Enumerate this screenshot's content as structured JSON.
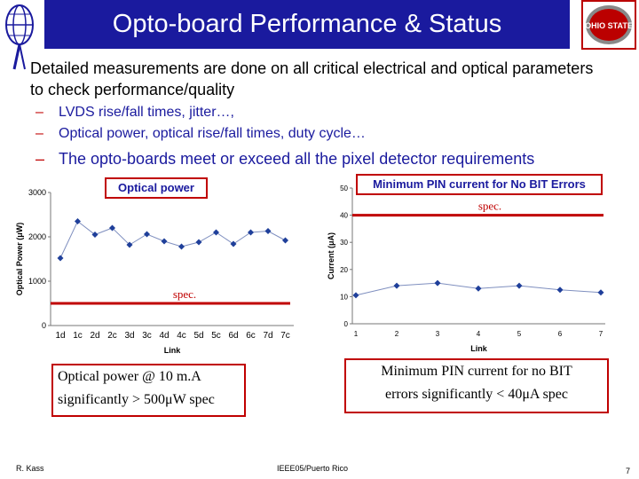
{
  "header": {
    "title": "Opto-board Performance & Status"
  },
  "colors": {
    "title_bg": "#1a1a9e",
    "spec_line": "#c00000",
    "series": "#1f3f9a",
    "osu_red": "#bb0000"
  },
  "logos": {
    "osu_text": "OHIO STATE"
  },
  "content": {
    "main_bullet": "Detailed measurements are done on all critical electrical and optical parameters to check performance/quality",
    "sub_bullets": [
      "LVDS rise/fall times, jitter…,",
      "Optical power, optical rise/fall times, duty cycle…",
      "The opto-boards meet or exceed all the pixel detector requirements"
    ],
    "dash": "–"
  },
  "chart_data": [
    {
      "type": "scatter",
      "title": "Optical power",
      "xlabel": "Link",
      "ylabel": "Optical Power (μW)",
      "categories": [
        "1d",
        "1c",
        "2d",
        "2c",
        "3d",
        "3c",
        "4d",
        "4c",
        "5d",
        "5c",
        "6d",
        "6c",
        "7d",
        "7c"
      ],
      "values": [
        1520,
        2350,
        2050,
        2200,
        1820,
        2060,
        1900,
        1780,
        1880,
        2100,
        1840,
        2100,
        2130,
        1920
      ],
      "ylim": [
        0,
        3000
      ],
      "yticks": [
        0,
        1000,
        2000,
        3000
      ],
      "spec_value": 500,
      "spec_label": "spec."
    },
    {
      "type": "scatter",
      "title": "Minimum PIN current for No BIT Errors",
      "xlabel": "Link",
      "ylabel": "Current (μA)",
      "categories": [
        "1",
        "2",
        "3",
        "4",
        "5",
        "6",
        "7"
      ],
      "values": [
        10.5,
        14,
        15,
        13,
        14,
        12.5,
        11.5
      ],
      "ylim": [
        0,
        50
      ],
      "yticks": [
        0,
        10,
        20,
        30,
        40,
        50
      ],
      "spec_value": 40,
      "spec_label": "spec."
    }
  ],
  "captions": {
    "left_line1": "Optical power @ 10 m.A",
    "left_line2": "significantly > 500μW spec",
    "right_line1": "Minimum PIN current for no BIT",
    "right_line2": "errors significantly < 40μA spec"
  },
  "footer": {
    "author": "R. Kass",
    "venue": "IEEE05/Puerto Rico",
    "page": "7"
  }
}
